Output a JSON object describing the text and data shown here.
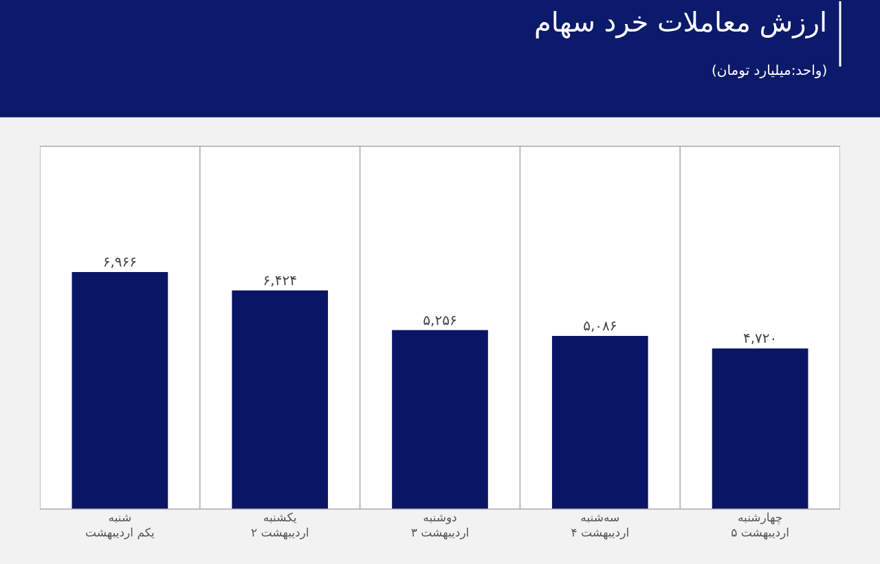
{
  "chart_data": {
    "type": "bar",
    "title": "ارزش معاملات خرد سهام",
    "subtitle": "(واحد:میلیارد تومان)",
    "categories": [
      "شنبه\nیکم اردیبهشت",
      "یکشنبه\n۲ اردیبهشت",
      "دوشنبه\n۳ اردیبهشت",
      "سه‌شنبه\n۴ اردیبهشت",
      "چهارشنبه\n۵ اردیبهشت"
    ],
    "values": [
      6966,
      6424,
      5256,
      5086,
      4720
    ],
    "value_labels": [
      "۶,۹۶۶",
      "۶,۴۲۴",
      "۵,۲۵۶",
      "۵,۰۸۶",
      "۴,۷۲۰"
    ],
    "color": "#0b1565"
  }
}
